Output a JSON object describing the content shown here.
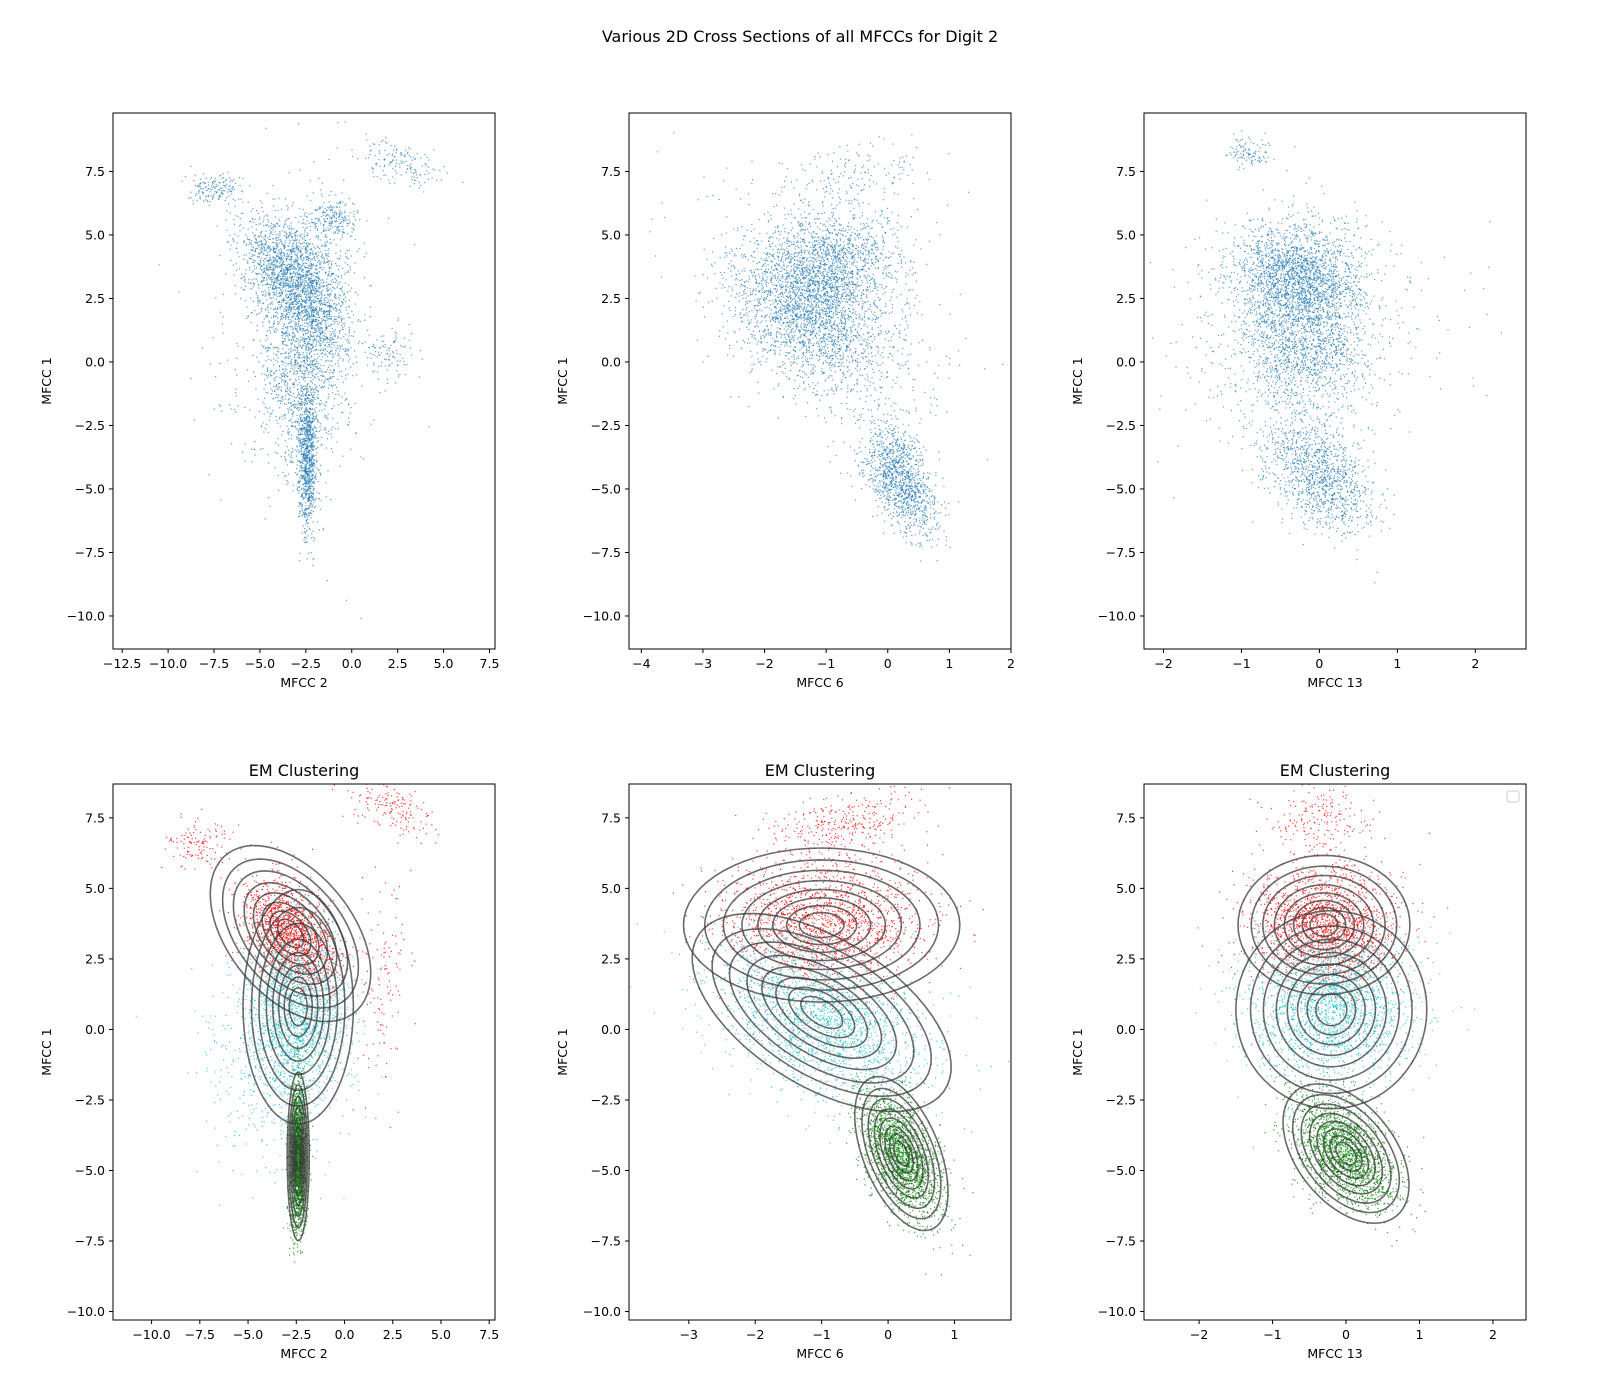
{
  "figure": {
    "suptitle": "Various 2D Cross Sections of all MFCCs for Digit 2"
  },
  "colors": {
    "scatter": "#1f77b4",
    "cluster_high": "#ff0000",
    "cluster_mid": "#17becf",
    "cluster_low": "#008000",
    "contour": "#3a3a3a"
  },
  "chart_data": [
    {
      "type": "scatter",
      "title": "",
      "xlabel": "MFCC 2",
      "ylabel": "MFCC 1",
      "xlim": [
        -13.0,
        7.8
      ],
      "ylim": [
        -11.3,
        9.8
      ],
      "xticks": [
        -12.5,
        -10.0,
        -7.5,
        -5.0,
        -2.5,
        0.0,
        2.5,
        5.0,
        7.5
      ],
      "xtick_labels": [
        "−12.5",
        "−10.0",
        "−7.5",
        "−5.0",
        "−2.5",
        "0.0",
        "2.5",
        "5.0",
        "7.5"
      ],
      "yticks": [
        7.5,
        5.0,
        2.5,
        0.0,
        -2.5,
        -5.0,
        -7.5,
        -10.0
      ],
      "ytick_labels": [
        "7.5",
        "5.0",
        "2.5",
        "0.0",
        "−2.5",
        "−5.0",
        "−7.5",
        "−10.0"
      ],
      "grid": false,
      "series": [
        {
          "color": "#1f77b4",
          "clouds": [
            {
              "cx": -2.4,
              "cy": 2.6,
              "sx": 1.1,
              "sy": 1.5,
              "rho": -0.2,
              "weight": 0.34
            },
            {
              "cx": -4.2,
              "cy": 3.9,
              "sx": 1.0,
              "sy": 0.9,
              "rho": -0.3,
              "weight": 0.13
            },
            {
              "cx": -2.4,
              "cy": -3.8,
              "sx": 0.25,
              "sy": 1.5,
              "rho": 0.0,
              "weight": 0.18
            },
            {
              "cx": -2.9,
              "cy": -0.5,
              "sx": 1.1,
              "sy": 1.9,
              "rho": 0.0,
              "weight": 0.16
            },
            {
              "cx": -7.5,
              "cy": 6.8,
              "sx": 0.7,
              "sy": 0.3,
              "rho": 0.0,
              "weight": 0.03
            },
            {
              "cx": -1.0,
              "cy": 5.7,
              "sx": 0.7,
              "sy": 0.4,
              "rho": 0.0,
              "weight": 0.04
            },
            {
              "cx": 2.0,
              "cy": 0.3,
              "sx": 0.6,
              "sy": 0.5,
              "rho": 0.0,
              "weight": 0.02
            },
            {
              "cx": 2.5,
              "cy": 7.8,
              "sx": 1.2,
              "sy": 0.5,
              "rho": -0.5,
              "weight": 0.03
            },
            {
              "cx": -3.0,
              "cy": 1.0,
              "sx": 2.5,
              "sy": 3.0,
              "rho": 0.0,
              "weight": 0.07
            }
          ]
        }
      ]
    },
    {
      "type": "scatter",
      "title": "",
      "xlabel": "MFCC 6",
      "ylabel": "MFCC 1",
      "xlim": [
        -4.2,
        2.0
      ],
      "ylim": [
        -11.3,
        9.8
      ],
      "xticks": [
        -4,
        -3,
        -2,
        -1,
        0,
        1,
        2
      ],
      "xtick_labels": [
        "−4",
        "−3",
        "−2",
        "−1",
        "0",
        "1",
        "2"
      ],
      "yticks": [
        7.5,
        5.0,
        2.5,
        0.0,
        -2.5,
        -5.0,
        -7.5,
        -10.0
      ],
      "ytick_labels": [
        "7.5",
        "5.0",
        "2.5",
        "0.0",
        "−2.5",
        "−5.0",
        "−7.5",
        "−10.0"
      ],
      "grid": false,
      "series": [
        {
          "color": "#1f77b4",
          "clouds": [
            {
              "cx": -1.0,
              "cy": 3.7,
              "sx": 0.6,
              "sy": 1.2,
              "rho": 0.1,
              "weight": 0.32
            },
            {
              "cx": -1.3,
              "cy": 1.8,
              "sx": 0.6,
              "sy": 1.3,
              "rho": -0.35,
              "weight": 0.3
            },
            {
              "cx": 0.2,
              "cy": -4.6,
              "sx": 0.3,
              "sy": 1.1,
              "rho": -0.5,
              "weight": 0.23
            },
            {
              "cx": -0.6,
              "cy": 7.3,
              "sx": 0.6,
              "sy": 0.6,
              "rho": 0.3,
              "weight": 0.03
            },
            {
              "cx": -1.0,
              "cy": 1.5,
              "sx": 1.0,
              "sy": 2.5,
              "rho": -0.5,
              "weight": 0.12
            }
          ]
        }
      ]
    },
    {
      "type": "scatter",
      "title": "",
      "xlabel": "MFCC 13",
      "ylabel": "MFCC 1",
      "xlim": [
        -2.25,
        2.65
      ],
      "ylim": [
        -11.3,
        9.8
      ],
      "xticks": [
        -2,
        -1,
        0,
        1,
        2
      ],
      "xtick_labels": [
        "−2",
        "−1",
        "0",
        "1",
        "2"
      ],
      "yticks": [
        7.5,
        5.0,
        2.5,
        0.0,
        -2.5,
        -5.0,
        -7.5,
        -10.0
      ],
      "ytick_labels": [
        "7.5",
        "5.0",
        "2.5",
        "0.0",
        "−2.5",
        "−5.0",
        "−7.5",
        "−10.0"
      ],
      "grid": false,
      "series": [
        {
          "color": "#1f77b4",
          "clouds": [
            {
              "cx": -0.3,
              "cy": 3.5,
              "sx": 0.4,
              "sy": 1.0,
              "rho": 0.0,
              "weight": 0.34
            },
            {
              "cx": -0.2,
              "cy": 1.0,
              "sx": 0.45,
              "sy": 1.5,
              "rho": 0.0,
              "weight": 0.32
            },
            {
              "cx": 0.0,
              "cy": -4.5,
              "sx": 0.35,
              "sy": 1.1,
              "rho": -0.4,
              "weight": 0.23
            },
            {
              "cx": -0.9,
              "cy": 8.2,
              "sx": 0.15,
              "sy": 0.3,
              "rho": 0.0,
              "weight": 0.02
            },
            {
              "cx": -0.2,
              "cy": 1.0,
              "sx": 0.9,
              "sy": 2.5,
              "rho": 0.0,
              "weight": 0.09
            }
          ]
        }
      ]
    },
    {
      "type": "scatter",
      "title": "EM Clustering",
      "xlabel": "MFCC 2",
      "ylabel": "MFCC 1",
      "xlim": [
        -12.0,
        7.8
      ],
      "ylim": [
        -10.3,
        8.7
      ],
      "xticks": [
        -10.0,
        -7.5,
        -5.0,
        -2.5,
        0.0,
        2.5,
        5.0,
        7.5
      ],
      "xtick_labels": [
        "−10.0",
        "−7.5",
        "−5.0",
        "−2.5",
        "0.0",
        "2.5",
        "5.0",
        "7.5"
      ],
      "yticks": [
        7.5,
        5.0,
        2.5,
        0.0,
        -2.5,
        -5.0,
        -7.5,
        -10.0
      ],
      "ytick_labels": [
        "7.5",
        "5.0",
        "2.5",
        "0.0",
        "−2.5",
        "−5.0",
        "−7.5",
        "−10.0"
      ],
      "grid": false,
      "series": [
        {
          "color": "#ff0000",
          "clouds": [
            {
              "cx": -2.8,
              "cy": 3.4,
              "sx": 1.2,
              "sy": 1.0,
              "rho": -0.45,
              "weight": 0.8
            },
            {
              "cx": -7.5,
              "cy": 6.6,
              "sx": 0.8,
              "sy": 0.4,
              "rho": 0.0,
              "weight": 0.06
            },
            {
              "cx": 2.0,
              "cy": 1.5,
              "sx": 0.8,
              "sy": 2.0,
              "rho": 0.3,
              "weight": 0.06
            },
            {
              "cx": 2.5,
              "cy": 7.8,
              "sx": 1.2,
              "sy": 0.5,
              "rho": -0.5,
              "weight": 0.08
            }
          ]
        },
        {
          "color": "#17becf",
          "clouds": [
            {
              "cx": -2.5,
              "cy": 0.7,
              "sx": 1.3,
              "sy": 1.5,
              "rho": 0.0,
              "weight": 0.75
            },
            {
              "cx": -3.5,
              "cy": -1.5,
              "sx": 1.8,
              "sy": 1.8,
              "rho": 0.0,
              "weight": 0.25
            }
          ]
        },
        {
          "color": "#008000",
          "clouds": [
            {
              "cx": -2.4,
              "cy": -4.5,
              "sx": 0.22,
              "sy": 1.3,
              "rho": 0.0,
              "weight": 1.0
            }
          ]
        }
      ],
      "gaussians": [
        {
          "mx": -2.8,
          "my": 3.4,
          "sx": 1.6,
          "sy": 1.2,
          "rho": -0.45
        },
        {
          "mx": -2.4,
          "my": 0.8,
          "sx": 1.1,
          "sy": 1.6,
          "rho": 0.0
        },
        {
          "mx": -2.4,
          "my": -4.5,
          "sx": 0.22,
          "sy": 1.15,
          "rho": 0.0
        }
      ]
    },
    {
      "type": "scatter",
      "title": "EM Clustering",
      "xlabel": "MFCC 6",
      "ylabel": "MFCC 1",
      "xlim": [
        -3.9,
        1.85
      ],
      "ylim": [
        -10.3,
        8.7
      ],
      "xticks": [
        -3,
        -2,
        -1,
        0,
        1
      ],
      "xtick_labels": [
        "−3",
        "−2",
        "−1",
        "0",
        "1"
      ],
      "yticks": [
        7.5,
        5.0,
        2.5,
        0.0,
        -2.5,
        -5.0,
        -7.5,
        -10.0
      ],
      "ytick_labels": [
        "7.5",
        "5.0",
        "2.5",
        "0.0",
        "−2.5",
        "−5.0",
        "−7.5",
        "−10.0"
      ],
      "grid": false,
      "series": [
        {
          "color": "#ff0000",
          "clouds": [
            {
              "cx": -1.0,
              "cy": 3.8,
              "sx": 0.75,
              "sy": 1.1,
              "rho": 0.0,
              "weight": 0.85
            },
            {
              "cx": -0.6,
              "cy": 7.3,
              "sx": 0.6,
              "sy": 0.6,
              "rho": 0.3,
              "weight": 0.15
            }
          ]
        },
        {
          "color": "#17becf",
          "clouds": [
            {
              "cx": -1.0,
              "cy": 0.3,
              "sx": 0.8,
              "sy": 1.4,
              "rho": -0.45,
              "weight": 1.0
            }
          ]
        },
        {
          "color": "#008000",
          "clouds": [
            {
              "cx": 0.2,
              "cy": -4.5,
              "sx": 0.3,
              "sy": 1.1,
              "rho": -0.5,
              "weight": 1.0
            }
          ]
        }
      ],
      "gaussians": [
        {
          "mx": -1.0,
          "my": 3.7,
          "sx": 0.8,
          "sy": 1.05,
          "rho": 0.0
        },
        {
          "mx": -1.0,
          "my": 0.6,
          "sx": 0.75,
          "sy": 1.35,
          "rho": -0.55
        },
        {
          "mx": 0.2,
          "my": -4.4,
          "sx": 0.27,
          "sy": 1.05,
          "rho": -0.5
        }
      ]
    },
    {
      "type": "scatter",
      "title": "EM Clustering",
      "xlabel": "MFCC 13",
      "ylabel": "MFCC 1",
      "xlim": [
        -2.75,
        2.45
      ],
      "ylim": [
        -10.3,
        8.7
      ],
      "xticks": [
        -2,
        -1,
        0,
        1,
        2
      ],
      "xtick_labels": [
        "−2",
        "−1",
        "0",
        "1",
        "2"
      ],
      "yticks": [
        7.5,
        5.0,
        2.5,
        0.0,
        -2.5,
        -5.0,
        -7.5,
        -10.0
      ],
      "ytick_labels": [
        "7.5",
        "5.0",
        "2.5",
        "0.0",
        "−2.5",
        "−5.0",
        "−7.5",
        "−10.0"
      ],
      "grid": false,
      "legend": {
        "placement": "top-right",
        "entries": []
      },
      "series": [
        {
          "color": "#ff0000",
          "clouds": [
            {
              "cx": -0.3,
              "cy": 3.7,
              "sx": 0.5,
              "sy": 1.0,
              "rho": 0.0,
              "weight": 0.9
            },
            {
              "cx": -0.4,
              "cy": 7.5,
              "sx": 0.4,
              "sy": 0.7,
              "rho": 0.0,
              "weight": 0.1
            }
          ]
        },
        {
          "color": "#17becf",
          "clouds": [
            {
              "cx": -0.2,
              "cy": 0.8,
              "sx": 0.55,
              "sy": 1.3,
              "rho": 0.0,
              "weight": 1.0
            }
          ]
        },
        {
          "color": "#008000",
          "clouds": [
            {
              "cx": 0.0,
              "cy": -4.4,
              "sx": 0.35,
              "sy": 1.0,
              "rho": -0.45,
              "weight": 1.0
            }
          ]
        }
      ],
      "gaussians": [
        {
          "mx": -0.3,
          "my": 3.7,
          "sx": 0.45,
          "sy": 0.95,
          "rho": 0.0
        },
        {
          "mx": -0.2,
          "my": 0.7,
          "sx": 0.5,
          "sy": 1.35,
          "rho": 0.0
        },
        {
          "mx": 0.0,
          "my": -4.4,
          "sx": 0.33,
          "sy": 0.95,
          "rho": -0.45
        }
      ]
    }
  ]
}
